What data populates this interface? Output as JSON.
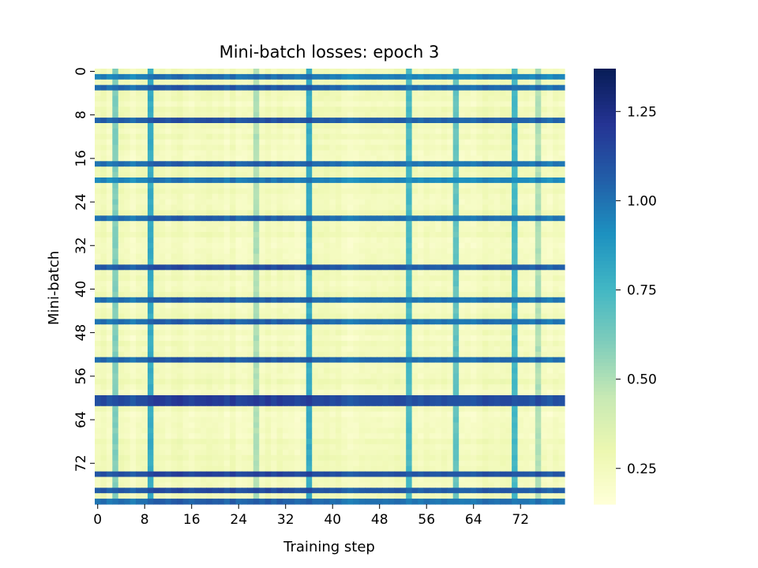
{
  "chart_data": {
    "type": "heatmap",
    "title": "Mini-batch losses: epoch 3",
    "xlabel": "Training step",
    "ylabel": "Mini-batch",
    "x_count": 80,
    "y_count": 80,
    "x_tick_labels": [
      "0",
      "8",
      "16",
      "24",
      "32",
      "40",
      "48",
      "56",
      "64",
      "72"
    ],
    "y_tick_labels": [
      "0",
      "8",
      "16",
      "24",
      "32",
      "40",
      "48",
      "56",
      "64",
      "72"
    ],
    "colormap": "YlGnBu",
    "vmin": 0.15,
    "vmax": 1.37,
    "colorbar_ticks": [
      "0.25",
      "0.50",
      "0.75",
      "1.00",
      "1.25"
    ],
    "colorbar_tick_values": [
      0.25,
      0.5,
      0.75,
      1.0,
      1.25
    ],
    "high_loss_rows": {
      "1": 0.95,
      "3": 1.02,
      "9": 1.05,
      "17": 1.0,
      "20": 0.93,
      "27": 1.0,
      "36": 1.07,
      "42": 1.0,
      "46": 1.0,
      "53": 1.02,
      "60": 1.12,
      "61": 1.12,
      "74": 1.1,
      "77": 1.07,
      "79": 1.0
    },
    "high_loss_columns": {
      "9": 0.78,
      "36": 0.78,
      "53": 0.72,
      "61": 0.65,
      "71": 0.72,
      "3": 0.58,
      "27": 0.48,
      "75": 0.48
    },
    "background_loss_range": [
      0.17,
      0.33
    ]
  }
}
